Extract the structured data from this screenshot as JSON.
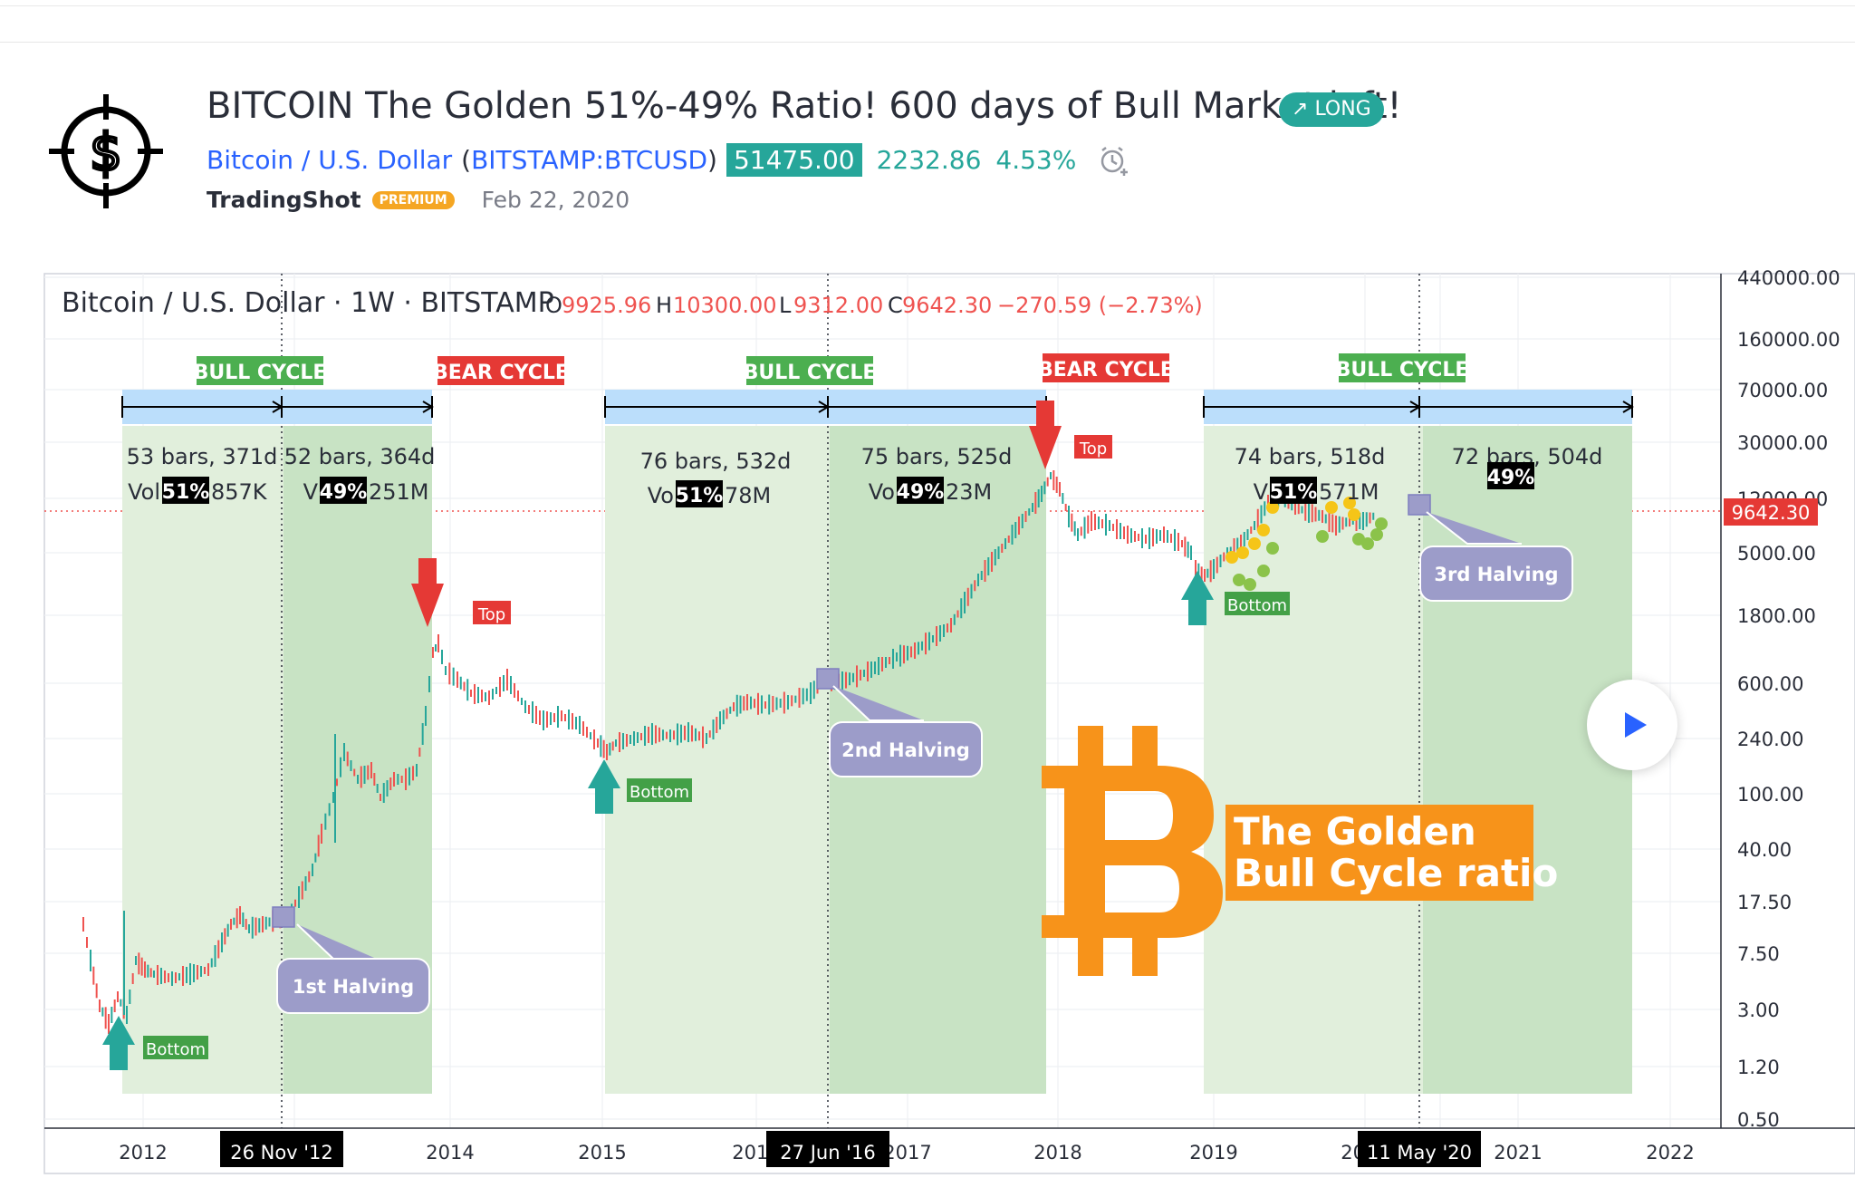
{
  "idea": {
    "title": "BITCOIN The Golden 51%-49% Ratio! 600 days of Bull Market left!",
    "direction_label": "LONG",
    "symbol_name": "Bitcoin / U.S. Dollar",
    "symbol_code": "BITSTAMP:BTCUSD",
    "price": "51475.00",
    "change": "2232.86",
    "change_pct": "4.53%",
    "author": "TradingShot",
    "author_badge": "PREMIUM",
    "date": "Feb 22, 2020"
  },
  "chart": {
    "legend": "Bitcoin / U.S. Dollar · 1W · BITSTAMP",
    "ohlc": {
      "o_label": "O",
      "o": "9925.96",
      "h_label": "H",
      "h": "10300.00",
      "l_label": "L",
      "l": "9312.00",
      "c_label": "C",
      "c": "9642.30",
      "chg": "−270.59 (−2.73%)"
    },
    "last_price_label": "9642.30",
    "y_ticks": [
      "440000.00",
      "160000.00",
      "70000.00",
      "30000.00",
      "12000.00",
      "5000.00",
      "1800.00",
      "600.00",
      "240.00",
      "100.00",
      "40.00",
      "17.50",
      "7.50",
      "3.00",
      "1.20",
      "0.50"
    ],
    "x_ticks": [
      "2012",
      "2014",
      "2015",
      "2016",
      "2017",
      "2018",
      "2019",
      "2020",
      "2021",
      "2022"
    ],
    "x_markers": [
      "26 Nov '12",
      "27 Jun '16",
      "11 May '20"
    ],
    "cycles": [
      {
        "label": "BULL CYCLE",
        "kind": "bull"
      },
      {
        "label": "BEAR CYCLE",
        "kind": "bear"
      },
      {
        "label": "BULL CYCLE",
        "kind": "bull"
      },
      {
        "label": "BEAR CYCLE",
        "kind": "bear"
      },
      {
        "label": "BULL CYCLE",
        "kind": "bull"
      }
    ],
    "ranges": [
      {
        "bars": "53 bars, 371d",
        "vol_prefix": "Vol",
        "pct": "51%",
        "vol_suffix": "857K"
      },
      {
        "bars": "52 bars, 364d",
        "vol_prefix": "V",
        "pct": "49%",
        "vol_suffix": "251M"
      },
      {
        "bars": "76 bars, 532d",
        "vol_prefix": "Vo",
        "pct": "51%",
        "vol_suffix": "78M"
      },
      {
        "bars": "75 bars, 525d",
        "vol_prefix": "Vo",
        "pct": "49%",
        "vol_suffix": "23M"
      },
      {
        "bars": "74 bars, 518d",
        "vol_prefix": "V",
        "pct": "51%",
        "vol_suffix": "571M"
      },
      {
        "bars": "72 bars, 504d",
        "vol_prefix": "",
        "pct": "49%",
        "vol_suffix": ""
      }
    ],
    "halvings": [
      "1st Halving",
      "2nd Halving",
      "3rd Halving"
    ],
    "top_label": "Top",
    "bottom_label": "Bottom",
    "banner": [
      "The Golden",
      "Bull Cycle ratio"
    ],
    "colors": {
      "bull": "#4caf50",
      "bear": "#e53935",
      "up": "#26a69a",
      "down": "#ef5350",
      "accent": "#f7931a",
      "halving": "#9c9cc9"
    }
  }
}
